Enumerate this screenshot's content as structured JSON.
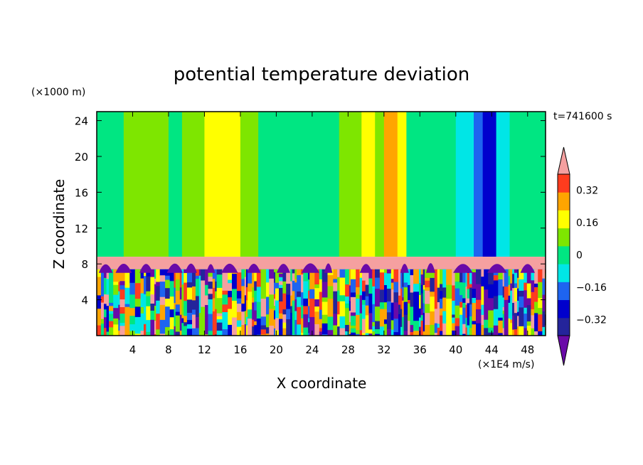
{
  "chart_data": {
    "type": "heatmap",
    "title": "potential temperature deviation",
    "xlabel": "X coordinate",
    "ylabel": "Z coordinate",
    "x_unit": "(×1E4 m/s)",
    "y_unit": "(×1000 m)",
    "time_label": "t=741600 s",
    "xlim": [
      0,
      50
    ],
    "ylim": [
      0,
      25
    ],
    "x_ticks": [
      4,
      8,
      12,
      16,
      20,
      24,
      28,
      32,
      36,
      40,
      44,
      48
    ],
    "y_ticks": [
      4,
      8,
      12,
      16,
      20,
      24
    ],
    "colorbar": {
      "levels": [
        -0.4,
        -0.32,
        -0.24,
        -0.16,
        -0.08,
        0,
        0.08,
        0.16,
        0.24,
        0.32,
        0.4
      ],
      "tick_labels": [
        "0.32",
        "0.16",
        "0",
        "−0.16",
        "−0.32"
      ],
      "tick_values": [
        0.32,
        0.16,
        0,
        -0.16,
        -0.32
      ],
      "colors": [
        "#6a0aa8",
        "#24249b",
        "#0000cd",
        "#1e64f0",
        "#00e6e6",
        "#00e682",
        "#7ee600",
        "#ffff00",
        "#ffa500",
        "#ff3c1e",
        "#f5a0a0"
      ],
      "extend": "both"
    },
    "upper_layer": {
      "z_range": [
        8.8,
        25
      ],
      "columns": [
        {
          "x": [
            0,
            3
          ],
          "value": -0.04
        },
        {
          "x": [
            3,
            4
          ],
          "value": 0.04
        },
        {
          "x": [
            4,
            8
          ],
          "value": 0.04
        },
        {
          "x": [
            8,
            9.5
          ],
          "value": -0.04
        },
        {
          "x": [
            9.5,
            12
          ],
          "value": 0.04
        },
        {
          "x": [
            12,
            16
          ],
          "value": 0.12
        },
        {
          "x": [
            16,
            18
          ],
          "value": 0.04
        },
        {
          "x": [
            18,
            27
          ],
          "value": -0.04
        },
        {
          "x": [
            27,
            29.5
          ],
          "value": 0.04
        },
        {
          "x": [
            29.5,
            31
          ],
          "value": 0.12
        },
        {
          "x": [
            31,
            32
          ],
          "value": 0.04
        },
        {
          "x": [
            32,
            33.5
          ],
          "value": 0.2
        },
        {
          "x": [
            33.5,
            34.5
          ],
          "value": 0.12
        },
        {
          "x": [
            34.5,
            40
          ],
          "value": -0.04
        },
        {
          "x": [
            40,
            42
          ],
          "value": -0.12
        },
        {
          "x": [
            42,
            43
          ],
          "value": -0.2
        },
        {
          "x": [
            43,
            44.5
          ],
          "value": -0.28
        },
        {
          "x": [
            44.5,
            46
          ],
          "value": -0.12
        },
        {
          "x": [
            46,
            50
          ],
          "value": -0.04
        }
      ]
    },
    "inversion_layer": {
      "z_range": [
        7.4,
        8.8
      ],
      "value": 0.4
    },
    "boundary_layer": {
      "z_range": [
        0,
        7.4
      ],
      "description": "turbulent mixed"
    }
  }
}
